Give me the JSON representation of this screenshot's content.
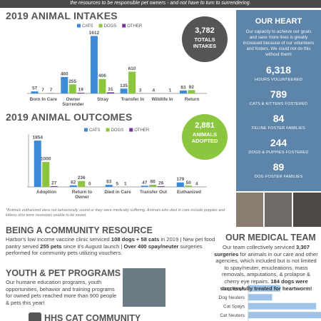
{
  "header_text": "the resources to be responsible pet owners - and not have to turn to surrendering.",
  "intake_total": {
    "value": "3,782",
    "label": "TOTALS INTAKES"
  },
  "outcome_total": {
    "value": "2,881",
    "label": "ANIMALS ADOPTED"
  },
  "heart": {
    "title": "OUR HEART",
    "text": "Our capacity to achieve our goals and save more lives is greatly increased because of our volunteers and fosters. We could not do this without them!",
    "stats": [
      {
        "value": "6,318",
        "label": "HOURS VOLUNTEERED"
      },
      {
        "value": "789",
        "label": "CATS & KITTENS FOSTERED"
      },
      {
        "value": "84",
        "label": "FELINE FOSTER FAMILIES"
      },
      {
        "value": "244",
        "label": "DOGS & PUPPIES FOSTERED"
      },
      {
        "value": "89",
        "label": "DOG FOSTER FAMILIES"
      }
    ]
  },
  "footnote": "*Animals euthanized were not behaviorally sound or they were medically suffering. Animals who died in care include puppies and kittens who were neonatals unable to be saved.",
  "community": {
    "title": "BEING A COMMUNITY RESOURCE",
    "parts": [
      {
        "text": "Harbor's low income vaccine clinic serviced "
      },
      {
        "text": "108 dogs + 58 cats",
        "bold": true
      },
      {
        "text": " in 2019 | New pet food pantry served "
      },
      {
        "text": "255 pets",
        "bold": true
      },
      {
        "text": " since it's August launch | "
      },
      {
        "text": "Over 400 spay/neuter",
        "bold": true
      },
      {
        "text": " surgeries performed for community pets utilizing vouchers."
      }
    ]
  },
  "medical": {
    "title": "OUR MEDICAL TEAM",
    "parts": [
      {
        "text": "Our team collectively serviced "
      },
      {
        "text": "3,307 surgeries",
        "bold": true
      },
      {
        "text": " for animals in our care and other agencies, which included but is not limited to spay/neuter, enucleations, mass removals, amputations, & prolapse & cherry eye repairs. "
      },
      {
        "text": "184 dogs were successfully treated for heartworm!",
        "bold": true
      }
    ]
  },
  "youth": {
    "title": "YOUTH & PET PROGRAMS",
    "text": "Our humane education programs, youth opportunities, behavior and training programs for owned pets reached more than 900 people & pets this year!"
  },
  "cat_community": {
    "title": "HHS CAT COMMUNITY"
  },
  "chart_data": [
    {
      "type": "bar",
      "title": "2019 ANIMAL INTAKES",
      "categories": [
        "Born In Care",
        "Owner Surrender",
        "Stray",
        "Transfer In",
        "Wildlife In",
        "Return"
      ],
      "series": [
        {
          "name": "CATS",
          "color": "#3d8bd6",
          "values": [
            57,
            460,
            1612,
            135,
            4,
            83
          ]
        },
        {
          "name": "DOGS",
          "color": "#8cc63f",
          "values": [
            7,
            255,
            406,
            610,
            null,
            92
          ]
        },
        {
          "name": "OTHER",
          "color": "#7a2f9e",
          "values": [
            7,
            19,
            31,
            3,
            1,
            null
          ]
        }
      ],
      "ylim": [
        0,
        1700
      ]
    },
    {
      "type": "bar",
      "title": "2019 ANIMAL OUTCOMES",
      "categories": [
        "Adoption",
        "Return to Owner",
        "Died in Care",
        "Transfer Out",
        "Euthanized"
      ],
      "series": [
        {
          "name": "CATS",
          "color": "#3d8bd6",
          "values": [
            1854,
            62,
            83,
            47,
            179
          ]
        },
        {
          "name": "DOGS",
          "color": "#8cc63f",
          "values": [
            1000,
            236,
            5,
            86,
            50
          ]
        },
        {
          "name": "OTHER",
          "color": "#7a2f9e",
          "values": [
            27,
            0,
            1,
            26,
            4
          ]
        }
      ],
      "ylim": [
        0,
        2000
      ]
    },
    {
      "type": "hbar",
      "categories": [
        "Dog Spays",
        "Dog Neuters",
        "Cat Spays",
        "Cat Neuters"
      ],
      "values": [
        400,
        300,
        850,
        950
      ],
      "color": "#9dc3e6",
      "xlim": [
        0,
        1000
      ]
    }
  ]
}
